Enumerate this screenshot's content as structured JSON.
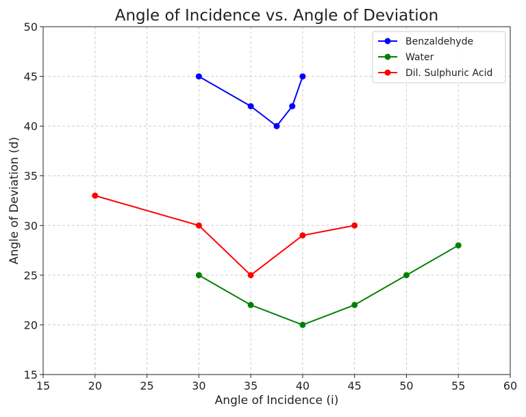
{
  "chart_data": {
    "type": "line",
    "title": "Angle of Incidence vs. Angle of Deviation",
    "xlabel": "Angle of Incidence (i)",
    "ylabel": "Angle of Deviation (d)",
    "xlim": [
      15,
      60
    ],
    "ylim": [
      15,
      50
    ],
    "xticks": [
      15,
      20,
      25,
      30,
      35,
      40,
      45,
      50,
      55,
      60
    ],
    "yticks": [
      15,
      20,
      25,
      30,
      35,
      40,
      45,
      50
    ],
    "grid": true,
    "legend": "top-right",
    "series": [
      {
        "name": "Benzaldehyde",
        "color": "#0000ff",
        "x": [
          30,
          35,
          37.5,
          39,
          40
        ],
        "y": [
          45,
          42,
          40,
          42,
          45
        ]
      },
      {
        "name": "Water",
        "color": "#008000",
        "x": [
          30,
          35,
          40,
          45,
          50,
          55
        ],
        "y": [
          25,
          22,
          20,
          22,
          25,
          28
        ]
      },
      {
        "name": "Dil. Sulphuric Acid",
        "color": "#ff0000",
        "x": [
          20,
          30,
          35,
          40,
          45
        ],
        "y": [
          33,
          30,
          25,
          29,
          30
        ]
      }
    ]
  }
}
